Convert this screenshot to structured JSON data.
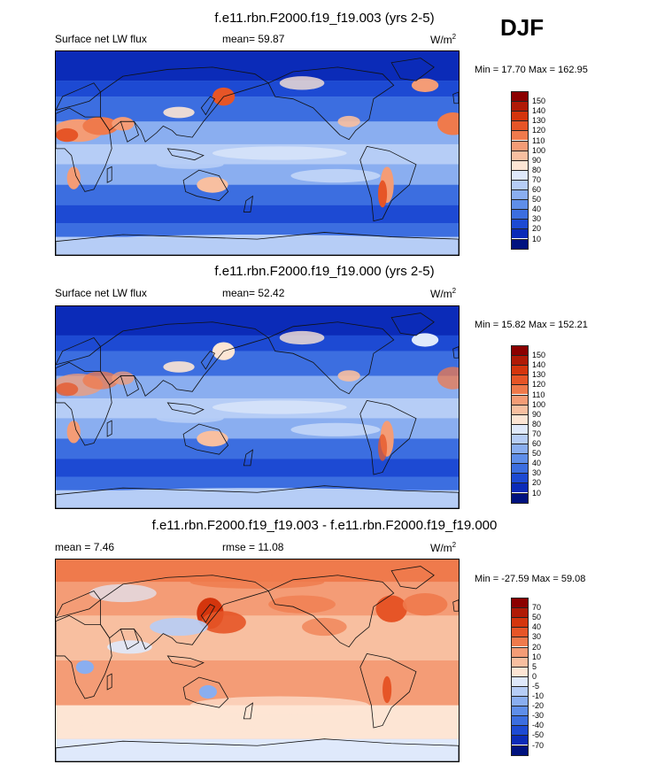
{
  "season": "DJF",
  "units_main": "W/m",
  "units_sup": "2",
  "panels": [
    {
      "title": "f.e11.rbn.F2000.f19_f19.003 (yrs 2-5)",
      "left_label": "Surface net LW flux",
      "stat_label": "mean=  59.87",
      "minmax": "Min =  17.70 Max = 162.95",
      "variant": "a"
    },
    {
      "title": "f.e11.rbn.F2000.f19_f19.000 (yrs 2-5)",
      "left_label": "Surface net LW flux",
      "stat_label": "mean=  52.42",
      "minmax": "Min =  15.82 Max = 152.21",
      "variant": "b"
    },
    {
      "title": "f.e11.rbn.F2000.f19_f19.003 - f.e11.rbn.F2000.f19_f19.000",
      "left_label": "mean =   7.46",
      "stat_label": "rmse =  11.08",
      "minmax": "Min = -27.59 Max =  59.08",
      "variant": "diff"
    }
  ],
  "colorbars": [
    {
      "labels": [
        "150",
        "140",
        "130",
        "120",
        "110",
        "100",
        "90",
        "80",
        "70",
        "60",
        "50",
        "40",
        "30",
        "20",
        "10"
      ],
      "colors": [
        "#8b0000",
        "#b01a06",
        "#d4350d",
        "#e65527",
        "#ef7a4c",
        "#f49c76",
        "#f8bfa0",
        "#fde5d4",
        "#dfe9fb",
        "#b6cdf6",
        "#8aaef0",
        "#5f8ee9",
        "#3c6ee0",
        "#1d4ad3",
        "#0b2bb8",
        "#00127f"
      ]
    },
    {
      "labels": [
        "150",
        "140",
        "130",
        "120",
        "110",
        "100",
        "90",
        "80",
        "70",
        "60",
        "50",
        "40",
        "30",
        "20",
        "10"
      ],
      "colors": [
        "#8b0000",
        "#b01a06",
        "#d4350d",
        "#e65527",
        "#ef7a4c",
        "#f49c76",
        "#f8bfa0",
        "#fde5d4",
        "#dfe9fb",
        "#b6cdf6",
        "#8aaef0",
        "#5f8ee9",
        "#3c6ee0",
        "#1d4ad3",
        "#0b2bb8",
        "#00127f"
      ]
    },
    {
      "labels": [
        "70",
        "50",
        "40",
        "30",
        "20",
        "10",
        "5",
        "0",
        "-5",
        "-10",
        "-20",
        "-30",
        "-40",
        "-50",
        "-70"
      ],
      "colors": [
        "#8b0000",
        "#b01a06",
        "#d4350d",
        "#e65527",
        "#ef7a4c",
        "#f49c76",
        "#f8bfa0",
        "#fde5d4",
        "#dfe9fb",
        "#b6cdf6",
        "#8aaef0",
        "#5f8ee9",
        "#3c6ee0",
        "#1d4ad3",
        "#0b2bb8",
        "#00127f"
      ]
    }
  ]
}
